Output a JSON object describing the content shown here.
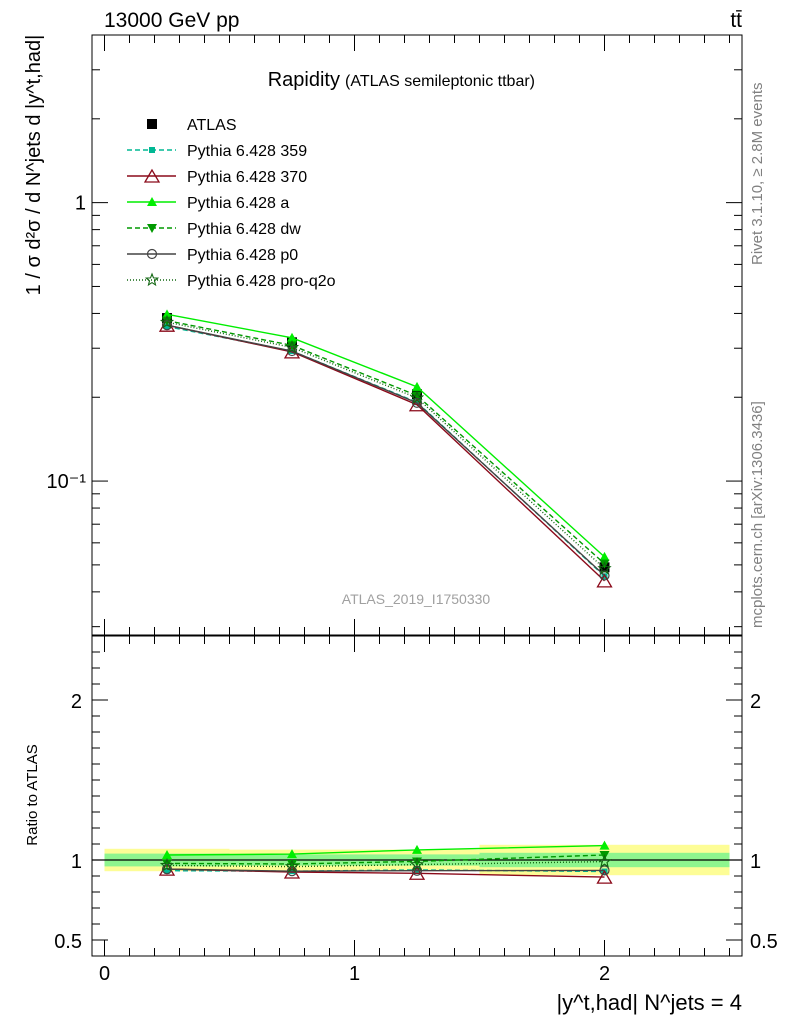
{
  "header": {
    "energy_label": "13000 GeV pp",
    "process_label": "tt̄"
  },
  "side_text": {
    "rivet": "Rivet 3.1.10, ≥ 2.8M events",
    "source": "mcplots.cern.ch [arXiv:1306.3436]"
  },
  "chart_data": [
    {
      "type": "line",
      "title": "Rapidity",
      "subtitle": "(ATLAS semileptonic ttbar)",
      "watermark": "ATLAS_2019_I1750330",
      "ylabel": "1 / σ d²σ / d N^jets d |y^t,had|",
      "yscale": "log",
      "ylim": [
        0.028,
        4.0
      ],
      "xlim": [
        -0.05,
        2.55
      ],
      "y_ticks": [
        {
          "v": 1,
          "label": "1"
        },
        {
          "v": 0.1,
          "label": "10⁻¹"
        }
      ],
      "x": [
        0.25,
        0.75,
        1.25,
        2.0
      ],
      "x_bins": [
        [
          0,
          0.5
        ],
        [
          0.5,
          1.0
        ],
        [
          1.0,
          1.5
        ],
        [
          1.5,
          2.5
        ]
      ],
      "legend_position": "top-left",
      "series": [
        {
          "name": "ATLAS",
          "values": [
            0.385,
            0.315,
            0.205,
            0.049
          ],
          "color": "#000000",
          "marker": "square",
          "dash": "none",
          "kind": "data"
        },
        {
          "name": "Pythia 6.428 359",
          "values": [
            0.359,
            0.293,
            0.192,
            0.0455
          ],
          "color": "#00b894",
          "marker": "small-square",
          "dash": "5,3"
        },
        {
          "name": "Pythia 6.428 370",
          "values": [
            0.363,
            0.291,
            0.188,
            0.0438
          ],
          "color": "#8b0a1a",
          "marker": "open-triangle",
          "dash": "none"
        },
        {
          "name": "Pythia 6.428 a",
          "values": [
            0.397,
            0.327,
            0.218,
            0.0534
          ],
          "color": "#00ee00",
          "marker": "triangle",
          "dash": "none"
        },
        {
          "name": "Pythia 6.428 dw",
          "values": [
            0.377,
            0.307,
            0.203,
            0.0505
          ],
          "color": "#009900",
          "marker": "triangle-down",
          "dash": "5,3"
        },
        {
          "name": "Pythia 6.428 p0",
          "values": [
            0.363,
            0.293,
            0.191,
            0.0458
          ],
          "color": "#444444",
          "marker": "open-circle",
          "dash": "none"
        },
        {
          "name": "Pythia 6.428 pro-q2o",
          "values": [
            0.372,
            0.302,
            0.199,
            0.0485
          ],
          "color": "#116611",
          "marker": "star",
          "dash": "1,2"
        }
      ]
    },
    {
      "type": "line",
      "ylabel": "Ratio to ATLAS",
      "xlabel": "|y^t,had| N^jets = 4",
      "ylim": [
        0.4,
        2.4
      ],
      "xlim": [
        -0.05,
        2.55
      ],
      "y_ticks": [
        {
          "v": 0.5,
          "label": "0.5"
        },
        {
          "v": 1,
          "label": "1"
        },
        {
          "v": 2,
          "label": "2"
        }
      ],
      "x_ticks": [
        {
          "v": 0,
          "label": "0"
        },
        {
          "v": 1,
          "label": "1"
        },
        {
          "v": 2,
          "label": "2"
        }
      ],
      "x": [
        0.25,
        0.75,
        1.25,
        2.0
      ],
      "bands": [
        {
          "x": [
            0,
            0.5
          ],
          "inner": [
            0.96,
            1.04
          ],
          "outer": [
            0.93,
            1.07
          ]
        },
        {
          "x": [
            0.5,
            1.0
          ],
          "inner": [
            0.965,
            1.035
          ],
          "outer": [
            0.935,
            1.065
          ]
        },
        {
          "x": [
            1.0,
            1.5
          ],
          "inner": [
            0.965,
            1.035
          ],
          "outer": [
            0.935,
            1.065
          ]
        },
        {
          "x": [
            1.5,
            2.5
          ],
          "inner": [
            0.955,
            1.045
          ],
          "outer": [
            0.905,
            1.095
          ]
        }
      ],
      "band_colors": {
        "inner": "#8ef58e",
        "outer": "#fdfd96"
      },
      "series": [
        {
          "name": "Pythia 6.428 359",
          "values": [
            0.933,
            0.93,
            0.938,
            0.928
          ]
        },
        {
          "name": "Pythia 6.428 370",
          "values": [
            0.943,
            0.925,
            0.917,
            0.893
          ]
        },
        {
          "name": "Pythia 6.428 a",
          "values": [
            1.031,
            1.037,
            1.063,
            1.09
          ]
        },
        {
          "name": "Pythia 6.428 dw",
          "values": [
            0.979,
            0.975,
            0.991,
            1.031
          ]
        },
        {
          "name": "Pythia 6.428 p0",
          "values": [
            0.943,
            0.93,
            0.933,
            0.935
          ]
        },
        {
          "name": "Pythia 6.428 pro-q2o",
          "values": [
            0.966,
            0.959,
            0.971,
            0.99
          ]
        }
      ]
    }
  ]
}
